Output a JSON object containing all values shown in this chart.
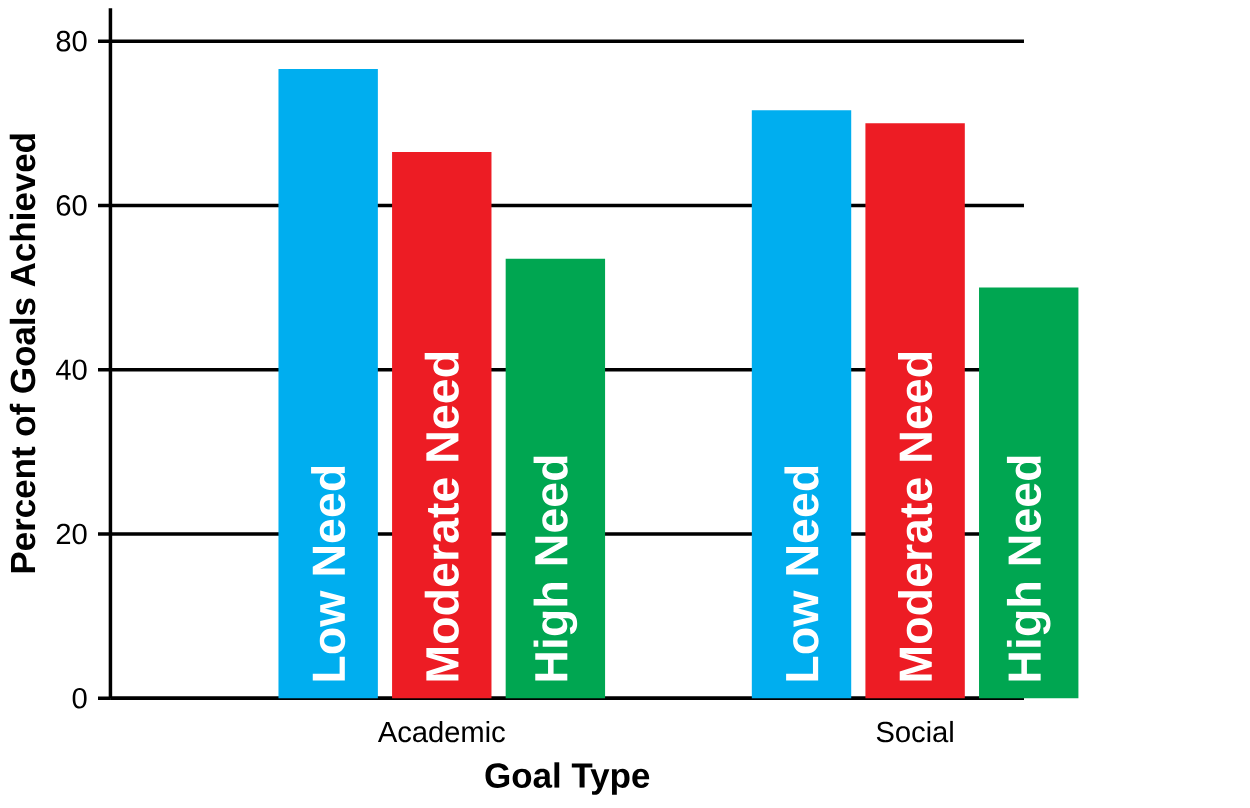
{
  "chart_data": {
    "type": "bar",
    "xlabel": "Goal Type",
    "ylabel": "Percent of Goals Achieved",
    "categories": [
      "Academic",
      "Social"
    ],
    "series": [
      {
        "name": "Low Need",
        "color": "#00aeef",
        "values": [
          76.6,
          71.6
        ]
      },
      {
        "name": "Moderate Need",
        "color": "#ed1c24",
        "values": [
          66.5,
          70.0
        ]
      },
      {
        "name": "High Need",
        "color": "#00a651",
        "values": [
          53.5,
          50.0
        ]
      }
    ],
    "ylim": [
      0,
      84
    ],
    "yticks": [
      0,
      20,
      40,
      60,
      80
    ],
    "grid": "y",
    "legend": false
  }
}
